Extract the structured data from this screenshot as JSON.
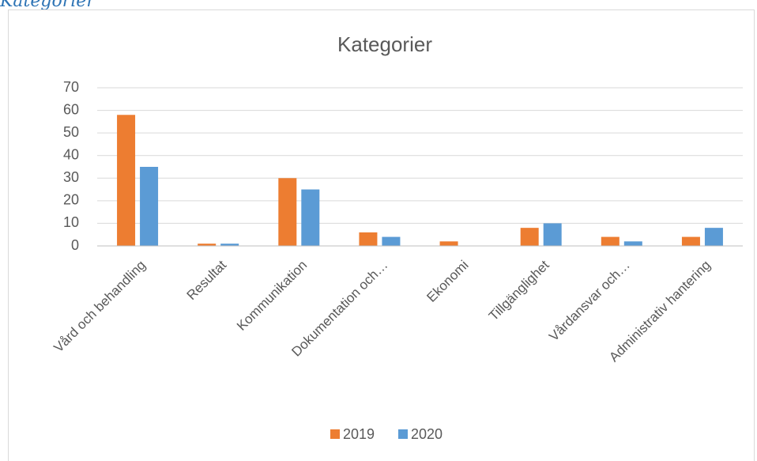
{
  "heading": "Kategorier",
  "chart_data": {
    "type": "bar",
    "title": "Kategorier",
    "categories": [
      "Vård och behandling",
      "Resultat",
      "Kommunikation",
      "Dokumentation och…",
      "Ekonomi",
      "Tillgänglighet",
      "Vårdansvar och…",
      "Administrativ hantering"
    ],
    "series": [
      {
        "name": "2019",
        "color": "#ed7d31",
        "values": [
          58,
          1,
          30,
          6,
          2,
          8,
          4,
          4
        ]
      },
      {
        "name": "2020",
        "color": "#5b9bd5",
        "values": [
          35,
          1,
          25,
          4,
          0,
          10,
          2,
          8
        ]
      }
    ],
    "ylim": [
      0,
      70
    ],
    "yticks": [
      0,
      10,
      20,
      30,
      40,
      50,
      60,
      70
    ],
    "grid": true,
    "legend": "bottom"
  }
}
